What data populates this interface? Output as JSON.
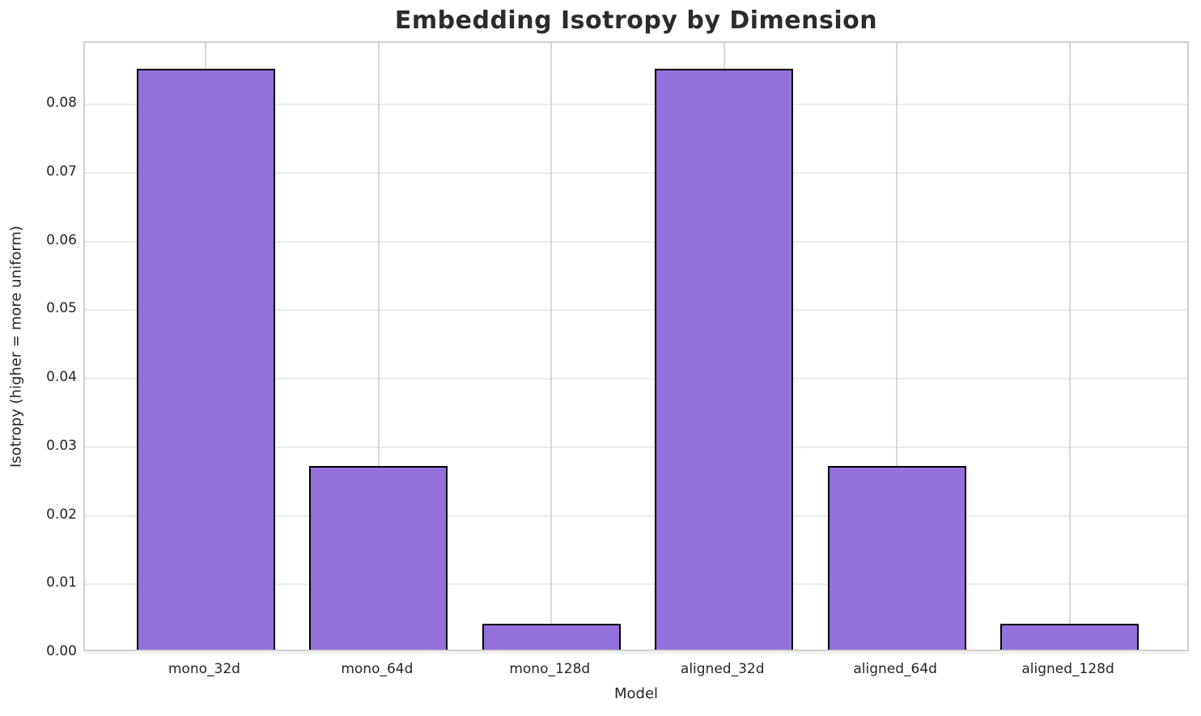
{
  "chart_data": {
    "type": "bar",
    "title": "Embedding Isotropy by Dimension",
    "xlabel": "Model",
    "ylabel": "Isotropy (higher = more uniform)",
    "categories": [
      "mono_32d",
      "mono_64d",
      "mono_128d",
      "aligned_32d",
      "aligned_64d",
      "aligned_128d"
    ],
    "values": [
      0.0847,
      0.0268,
      0.0038,
      0.0847,
      0.0268,
      0.0038
    ],
    "ylim": [
      0,
      0.089
    ],
    "xlim": [
      -0.7,
      5.7
    ],
    "bar_width_units": 0.8,
    "yticks": [
      0.0,
      0.01,
      0.02,
      0.03,
      0.04,
      0.05,
      0.06,
      0.07,
      0.08
    ],
    "ytick_labels": [
      "0.00",
      "0.01",
      "0.02",
      "0.03",
      "0.04",
      "0.05",
      "0.06",
      "0.07",
      "0.08"
    ],
    "grid": "both",
    "legend": "none",
    "bar_color": "#9370DB",
    "bar_edge_color": "#000000",
    "grid_color_h": "#ececec",
    "grid_color_v": "#d8d8d8",
    "spine_color": "#cfcfcf",
    "text_color": "#262626"
  }
}
